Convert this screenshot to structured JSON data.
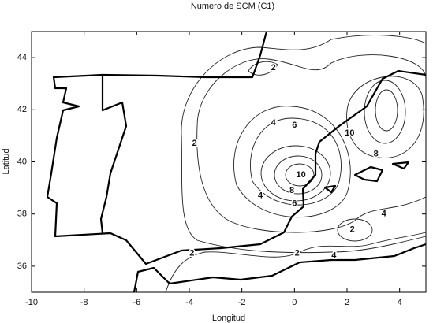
{
  "chart_data": {
    "type": "contour",
    "title": "Numero de SCM (C1)",
    "x_label": "Longitud",
    "y_label": "Latitud",
    "xlim": [
      -10,
      5
    ],
    "ylim": [
      35,
      45
    ],
    "xticks": [
      -10,
      -8,
      -6,
      -4,
      -2,
      0,
      2,
      4
    ],
    "yticks": [
      36,
      38,
      40,
      42,
      44
    ],
    "contour_labels": [
      {
        "x": -0.8,
        "y": 43.6,
        "value": 2
      },
      {
        "x": -0.8,
        "y": 41.5,
        "value": 4
      },
      {
        "x": 0.0,
        "y": 41.4,
        "value": 6
      },
      {
        "x": -3.8,
        "y": 40.7,
        "value": 2
      },
      {
        "x": 2.1,
        "y": 41.1,
        "value": 10
      },
      {
        "x": 3.1,
        "y": 40.3,
        "value": 8
      },
      {
        "x": 0.25,
        "y": 39.5,
        "value": 10
      },
      {
        "x": -0.1,
        "y": 38.9,
        "value": 8
      },
      {
        "x": 0.0,
        "y": 38.4,
        "value": 6
      },
      {
        "x": -1.3,
        "y": 38.7,
        "value": 4
      },
      {
        "x": 3.4,
        "y": 38.0,
        "value": 4
      },
      {
        "x": 2.2,
        "y": 37.4,
        "value": 2
      },
      {
        "x": -3.9,
        "y": 36.5,
        "value": 2
      },
      {
        "x": 0.1,
        "y": 36.5,
        "value": 2
      },
      {
        "x": 1.5,
        "y": 36.4,
        "value": 4
      }
    ]
  }
}
